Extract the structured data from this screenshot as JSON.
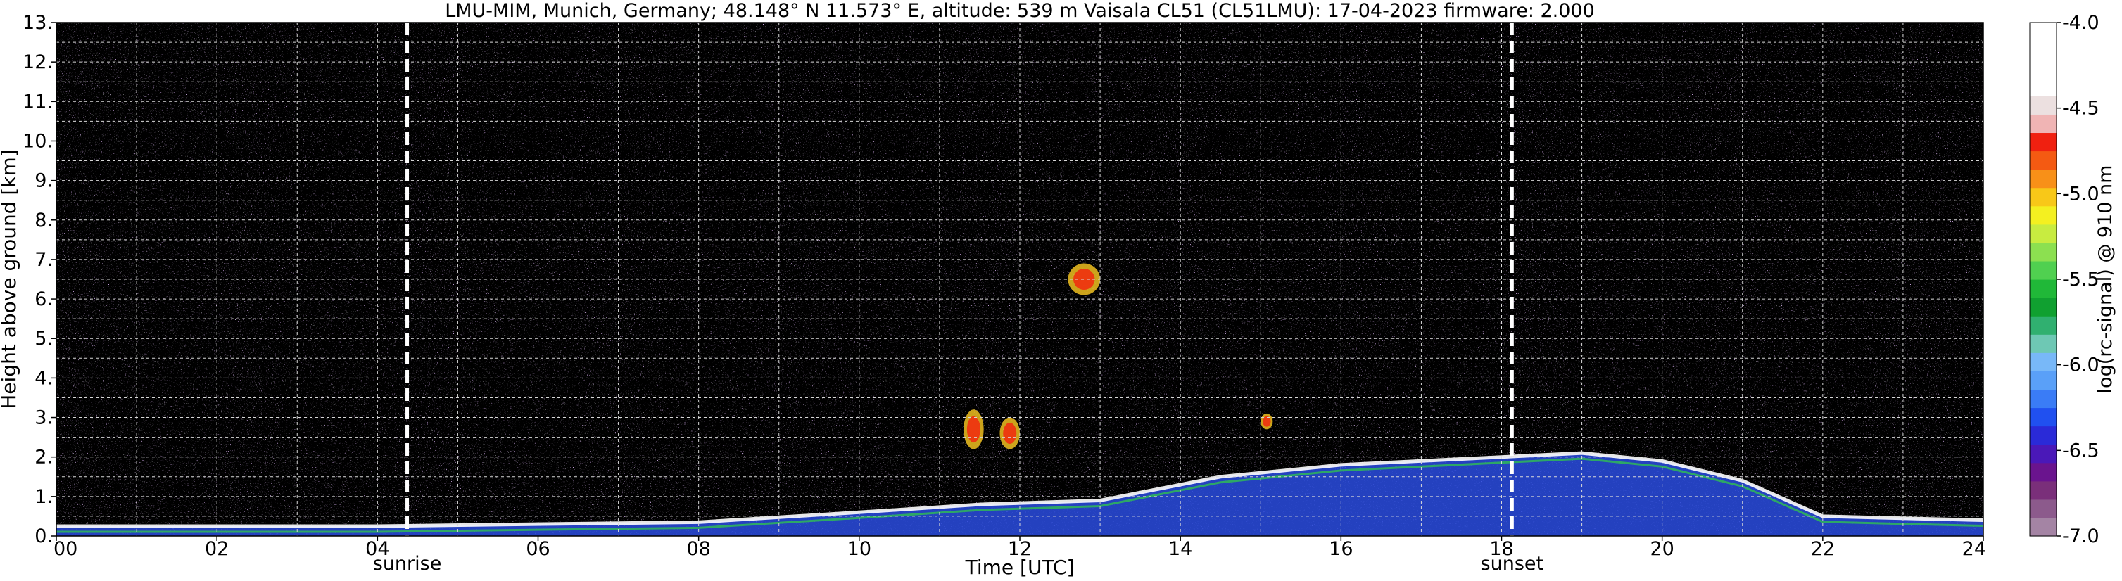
{
  "chart_data": {
    "type": "heatmap",
    "title": "LMU-MIM, Munich, Germany; 48.148° N 11.573° E, altitude: 539 m    Vaisala CL51 (CL51LMU): 17-04-2023    firmware: 2.000",
    "xlabel": "Time [UTC]",
    "ylabel": "Height above ground [km]",
    "xlim": [
      0,
      24
    ],
    "ylim": [
      0,
      13
    ],
    "x_ticks": [
      "00",
      "02",
      "04",
      "06",
      "08",
      "10",
      "12",
      "14",
      "16",
      "18",
      "20",
      "22",
      "24"
    ],
    "x_tick_values": [
      0,
      2,
      4,
      6,
      8,
      10,
      12,
      14,
      16,
      18,
      20,
      22,
      24
    ],
    "y_ticks": [
      "0.",
      "1.",
      "2.",
      "3.",
      "4.",
      "5.",
      "6.",
      "7.",
      "8.",
      "9.",
      "10.",
      "11.",
      "12.",
      "13."
    ],
    "y_tick_values": [
      0,
      1,
      2,
      3,
      4,
      5,
      6,
      7,
      8,
      9,
      10,
      11,
      12,
      13
    ],
    "grid": true,
    "markers": [
      {
        "label": "sunrise",
        "x": 4.37
      },
      {
        "label": "sunset",
        "x": 18.13
      }
    ],
    "colorbar": {
      "label": "log(rc-signal) @ 910 nm",
      "range": [
        -7.0,
        -4.0
      ],
      "ticks": [
        "-4.0",
        "-4.5",
        "-5.0",
        "-5.5",
        "-6.0",
        "-6.5",
        "-7.0"
      ],
      "tick_values": [
        -4.0,
        -4.5,
        -5.0,
        -5.5,
        -6.0,
        -6.5,
        -7.0
      ],
      "colors": [
        "#a484a4",
        "#8c5a8c",
        "#7a2f7a",
        "#6a148e",
        "#4a18b8",
        "#2a2ad8",
        "#2050f0",
        "#3a7cf6",
        "#5aa0f8",
        "#78b8f8",
        "#6ec8b4",
        "#30b070",
        "#10a030",
        "#20b838",
        "#50d050",
        "#8ce050",
        "#c8ec40",
        "#f4f020",
        "#f8c818",
        "#f89018",
        "#f45a12",
        "#f02010",
        "#f0b4b4",
        "#ece0e0",
        "#ffffff",
        "#ffffff",
        "#ffffff",
        "#ffffff"
      ]
    },
    "features": [
      {
        "kind": "cloud",
        "x_range": [
          11.3,
          11.55
        ],
        "y_range": [
          2.2,
          3.2
        ]
      },
      {
        "kind": "cloud",
        "x_range": [
          11.75,
          12.0
        ],
        "y_range": [
          2.2,
          3.0
        ]
      },
      {
        "kind": "cloud",
        "x_range": [
          12.6,
          13.0
        ],
        "y_range": [
          6.1,
          6.9
        ]
      },
      {
        "kind": "cloud",
        "x_range": [
          15.0,
          15.15
        ],
        "y_range": [
          2.7,
          3.1
        ]
      },
      {
        "kind": "boundary_layer_top",
        "points": [
          [
            0,
            0.25
          ],
          [
            4,
            0.25
          ],
          [
            8,
            0.35
          ],
          [
            10,
            0.6
          ],
          [
            11.5,
            0.8
          ],
          [
            13,
            0.9
          ],
          [
            14.5,
            1.5
          ],
          [
            16,
            1.8
          ],
          [
            18,
            2.0
          ],
          [
            19,
            2.1
          ],
          [
            20,
            1.9
          ],
          [
            21,
            1.4
          ],
          [
            22,
            0.5
          ],
          [
            24,
            0.4
          ]
        ]
      }
    ]
  }
}
